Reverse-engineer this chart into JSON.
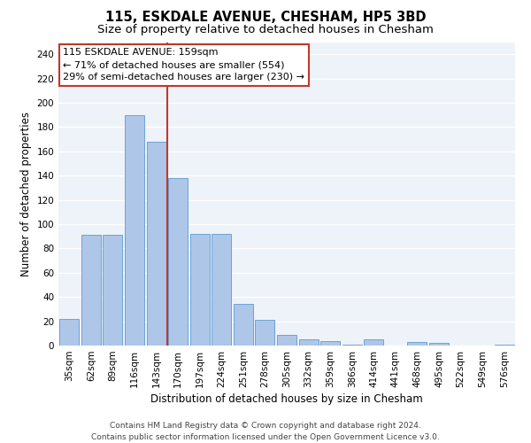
{
  "title": "115, ESKDALE AVENUE, CHESHAM, HP5 3BD",
  "subtitle": "Size of property relative to detached houses in Chesham",
  "xlabel": "Distribution of detached houses by size in Chesham",
  "ylabel": "Number of detached properties",
  "categories": [
    "35sqm",
    "62sqm",
    "89sqm",
    "116sqm",
    "143sqm",
    "170sqm",
    "197sqm",
    "224sqm",
    "251sqm",
    "278sqm",
    "305sqm",
    "332sqm",
    "359sqm",
    "386sqm",
    "414sqm",
    "441sqm",
    "468sqm",
    "495sqm",
    "522sqm",
    "549sqm",
    "576sqm"
  ],
  "values": [
    22,
    91,
    91,
    190,
    168,
    138,
    92,
    92,
    34,
    21,
    9,
    5,
    4,
    1,
    5,
    0,
    3,
    2,
    0,
    0,
    1
  ],
  "bar_color": "#aec6e8",
  "bar_edge_color": "#5b9bd5",
  "vline_color": "#c0392b",
  "annotation_text": "115 ESKDALE AVENUE: 159sqm\n← 71% of detached houses are smaller (554)\n29% of semi-detached houses are larger (230) →",
  "annotation_box_color": "#ffffff",
  "annotation_box_edge": "#c0392b",
  "ylim": [
    0,
    250
  ],
  "yticks": [
    0,
    20,
    40,
    60,
    80,
    100,
    120,
    140,
    160,
    180,
    200,
    220,
    240
  ],
  "footer": "Contains HM Land Registry data © Crown copyright and database right 2024.\nContains public sector information licensed under the Open Government Licence v3.0.",
  "bg_color": "#eef2f9",
  "grid_color": "#ffffff",
  "fig_bg_color": "#ffffff",
  "title_fontsize": 10.5,
  "subtitle_fontsize": 9.5,
  "tick_fontsize": 7.5,
  "ylabel_fontsize": 8.5,
  "xlabel_fontsize": 8.5,
  "annotation_fontsize": 8,
  "footer_fontsize": 6.5
}
